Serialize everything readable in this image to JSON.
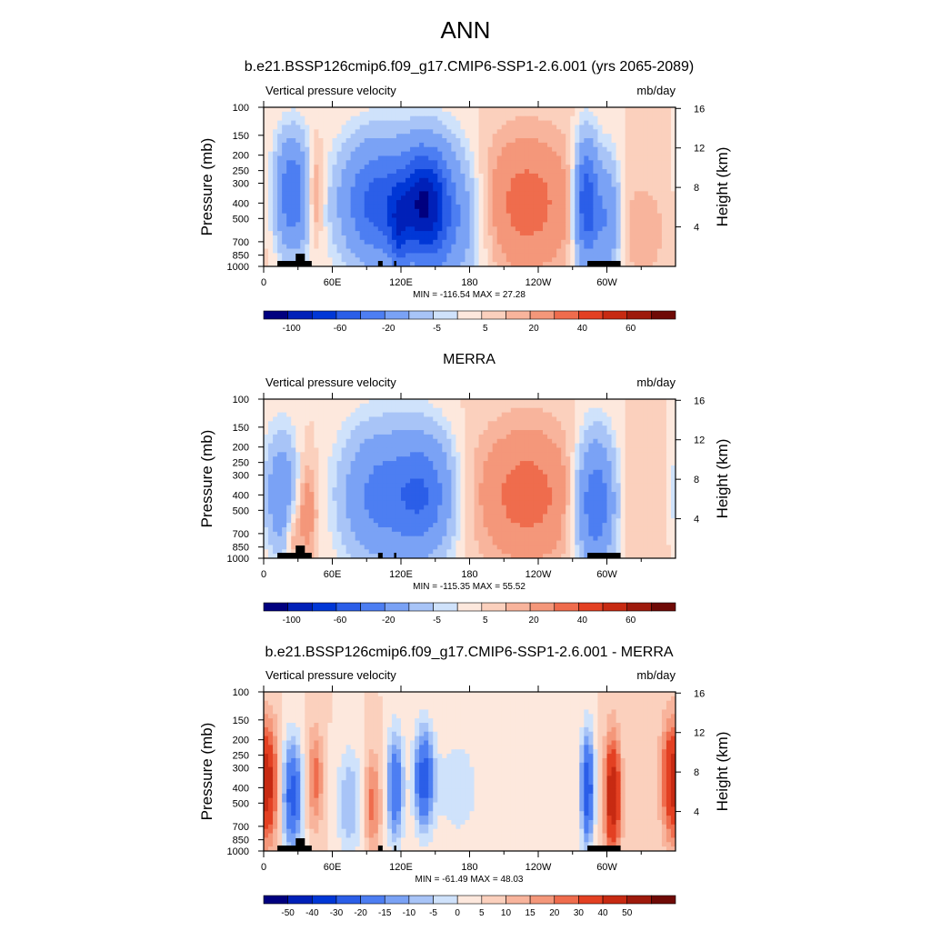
{
  "figure": {
    "title": "ANN"
  },
  "colors": {
    "scale_a": [
      "#00007f",
      "#0020b8",
      "#0037d6",
      "#2b5ee8",
      "#4d7ef2",
      "#7aa2f5",
      "#a8c4f7",
      "#cfe2fb",
      "#fde8dd",
      "#fbd0bd",
      "#f8b49c",
      "#f4977a",
      "#ef6c4d",
      "#e34022",
      "#c72a12",
      "#9e1a0c",
      "#6f0a06"
    ],
    "scale_diff": [
      "#00007f",
      "#0020b8",
      "#0037d6",
      "#2b5ee8",
      "#4d7ef2",
      "#7aa2f5",
      "#a8c4f7",
      "#cfe2fb",
      "#fde8dd",
      "#fbd0bd",
      "#f8b49c",
      "#f4977a",
      "#ef6c4d",
      "#e34022",
      "#c72a12",
      "#9e1a0c",
      "#6f0a06"
    ]
  },
  "chart_data": [
    {
      "type": "heatmap",
      "title": "b.e21.BSSP126cmip6.f09_g17.CMIP6-SSP1-2.6.001 (yrs 2065-2089)",
      "left_label": "Vertical pressure velocity",
      "right_label": "mb/day",
      "ylabel": "Pressure (mb)",
      "y2label": "Height (km)",
      "xlim": [
        0,
        360
      ],
      "ylim": [
        1000,
        100
      ],
      "yticks": [
        100,
        150,
        200,
        250,
        300,
        400,
        500,
        700,
        850,
        1000
      ],
      "y2ticks": [
        "16",
        "12",
        "8",
        "4"
      ],
      "xticks": [
        "0",
        "60E",
        "120E",
        "180",
        "120W",
        "60W"
      ],
      "stats": "MIN = -116.54  MAX =  27.28",
      "colorbar_labels": [
        "-100",
        "-60",
        "-20",
        "-5",
        "5",
        "20",
        "40",
        "60"
      ],
      "features": [
        {
          "lon": 25,
          "p": 350,
          "sx": 10,
          "sp": 0.55,
          "amp": -60
        },
        {
          "lon": 45,
          "p": 350,
          "sx": 5,
          "sp": 0.45,
          "amp": 20
        },
        {
          "lon": 100,
          "p": 400,
          "sx": 22,
          "sp": 0.6,
          "amp": -70
        },
        {
          "lon": 140,
          "p": 400,
          "sx": 14,
          "sp": 0.55,
          "amp": -90
        },
        {
          "lon": 118,
          "p": 600,
          "sx": 6,
          "sp": 0.4,
          "amp": -40
        },
        {
          "lon": 160,
          "p": 500,
          "sx": 20,
          "sp": 0.7,
          "amp": -40
        },
        {
          "lon": 230,
          "p": 400,
          "sx": 30,
          "sp": 0.7,
          "amp": 25
        },
        {
          "lon": 282,
          "p": 400,
          "sx": 7,
          "sp": 0.6,
          "amp": -80
        },
        {
          "lon": 300,
          "p": 500,
          "sx": 8,
          "sp": 0.6,
          "amp": -40
        },
        {
          "lon": 330,
          "p": 600,
          "sx": 18,
          "sp": 0.6,
          "amp": 8
        }
      ]
    },
    {
      "type": "heatmap",
      "title": "MERRA",
      "left_label": "Vertical pressure velocity",
      "right_label": "mb/day",
      "ylabel": "Pressure (mb)",
      "y2label": "Height (km)",
      "xlim": [
        0,
        360
      ],
      "ylim": [
        1000,
        100
      ],
      "yticks": [
        100,
        150,
        200,
        250,
        300,
        400,
        500,
        700,
        850,
        1000
      ],
      "y2ticks": [
        "16",
        "12",
        "8",
        "4"
      ],
      "xticks": [
        "0",
        "60E",
        "120E",
        "180",
        "120W",
        "60W"
      ],
      "stats": "MIN = -115.35  MAX =  55.52",
      "colorbar_labels": [
        "-100",
        "-60",
        "-20",
        "-5",
        "5",
        "20",
        "40",
        "60"
      ],
      "features": [
        {
          "lon": 15,
          "p": 400,
          "sx": 10,
          "sp": 0.6,
          "amp": -35
        },
        {
          "lon": 38,
          "p": 500,
          "sx": 6,
          "sp": 0.5,
          "amp": 18
        },
        {
          "lon": 25,
          "p": 700,
          "sx": 5,
          "sp": 0.35,
          "amp": 15
        },
        {
          "lon": 100,
          "p": 400,
          "sx": 22,
          "sp": 0.65,
          "amp": -45
        },
        {
          "lon": 140,
          "p": 400,
          "sx": 18,
          "sp": 0.6,
          "amp": -55
        },
        {
          "lon": 230,
          "p": 400,
          "sx": 32,
          "sp": 0.7,
          "amp": 25
        },
        {
          "lon": 290,
          "p": 450,
          "sx": 12,
          "sp": 0.65,
          "amp": -60
        },
        {
          "lon": 330,
          "p": 500,
          "sx": 20,
          "sp": 0.7,
          "amp": 5
        }
      ]
    },
    {
      "type": "heatmap",
      "title": "b.e21.BSSP126cmip6.f09_g17.CMIP6-SSP1-2.6.001 - MERRA",
      "left_label": "Vertical pressure velocity",
      "right_label": "mb/day",
      "ylabel": "Pressure (mb)",
      "y2label": "Height (km)",
      "xlim": [
        0,
        360
      ],
      "ylim": [
        1000,
        100
      ],
      "yticks": [
        100,
        150,
        200,
        250,
        300,
        400,
        500,
        700,
        850,
        1000
      ],
      "y2ticks": [
        "16",
        "12",
        "8",
        "4"
      ],
      "xticks": [
        "0",
        "60E",
        "120E",
        "180",
        "120W",
        "60W"
      ],
      "stats": "MIN = -61.49  MAX =  48.03",
      "colorbar_labels": [
        "-50",
        "-40",
        "-30",
        "-20",
        "-15",
        "-10",
        "-5",
        "0",
        "5",
        "10",
        "15",
        "20",
        "30",
        "40",
        "50"
      ],
      "features": [
        {
          "lon": 5,
          "p": 380,
          "sx": 6,
          "sp": 0.6,
          "amp": 28
        },
        {
          "lon": 25,
          "p": 450,
          "sx": 6,
          "sp": 0.55,
          "amp": -35
        },
        {
          "lon": 45,
          "p": 350,
          "sx": 5,
          "sp": 0.5,
          "amp": 18
        },
        {
          "lon": 75,
          "p": 500,
          "sx": 8,
          "sp": 0.55,
          "amp": -15
        },
        {
          "lon": 95,
          "p": 500,
          "sx": 5,
          "sp": 0.5,
          "amp": 18
        },
        {
          "lon": 115,
          "p": 400,
          "sx": 5,
          "sp": 0.55,
          "amp": -30
        },
        {
          "lon": 140,
          "p": 350,
          "sx": 6,
          "sp": 0.5,
          "amp": -35
        },
        {
          "lon": 170,
          "p": 400,
          "sx": 15,
          "sp": 0.6,
          "amp": -8
        },
        {
          "lon": 283,
          "p": 400,
          "sx": 4,
          "sp": 0.55,
          "amp": -40
        },
        {
          "lon": 305,
          "p": 450,
          "sx": 5,
          "sp": 0.6,
          "amp": 40
        },
        {
          "lon": 355,
          "p": 350,
          "sx": 6,
          "sp": 0.6,
          "amp": 25
        }
      ]
    }
  ]
}
